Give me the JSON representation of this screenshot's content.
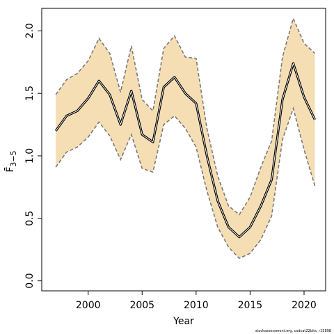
{
  "chart_data": {
    "type": "line",
    "xlabel": "Year",
    "ylabel": "F̄",
    "ylabel_subscript": "3−5",
    "xlim": [
      1995.7,
      2022.0
    ],
    "ylim": [
      -0.08,
      2.18
    ],
    "x_ticks": [
      2000,
      2005,
      2010,
      2015,
      2020
    ],
    "x_tick_labels": [
      "2000",
      "2005",
      "2010",
      "2015",
      "2020"
    ],
    "y_ticks": [
      0.0,
      0.5,
      1.0,
      1.5,
      2.0
    ],
    "y_tick_labels": [
      "0.0",
      "0.5",
      "1.0",
      "1.5",
      "2.0"
    ],
    "grid": false,
    "colors": {
      "band": "#f5deb3",
      "band_edge": "#7a7a7a",
      "line": "#000000"
    },
    "x": [
      1997,
      1998,
      1999,
      2000,
      2001,
      2002,
      2003,
      2004,
      2005,
      2006,
      2007,
      2008,
      2009,
      2010,
      2011,
      2012,
      2013,
      2014,
      2015,
      2016,
      2017,
      2018,
      2019,
      2020,
      2021
    ],
    "series": [
      {
        "role": "estimate",
        "values": [
          1.2,
          1.32,
          1.36,
          1.46,
          1.6,
          1.49,
          1.25,
          1.52,
          1.17,
          1.11,
          1.55,
          1.63,
          1.5,
          1.42,
          1.0,
          0.64,
          0.43,
          0.35,
          0.43,
          0.6,
          0.81,
          1.45,
          1.74,
          1.47,
          1.29
        ]
      },
      {
        "role": "upper",
        "values": [
          1.49,
          1.61,
          1.66,
          1.76,
          1.94,
          1.82,
          1.51,
          1.88,
          1.45,
          1.36,
          1.86,
          1.96,
          1.79,
          1.78,
          1.22,
          0.84,
          0.6,
          0.53,
          0.67,
          0.91,
          1.12,
          1.79,
          2.1,
          1.9,
          1.82
        ]
      },
      {
        "role": "lower",
        "values": [
          0.91,
          1.03,
          1.07,
          1.15,
          1.27,
          1.16,
          0.97,
          1.17,
          0.9,
          0.87,
          1.25,
          1.32,
          1.22,
          1.07,
          0.72,
          0.43,
          0.27,
          0.18,
          0.22,
          0.33,
          0.52,
          1.13,
          1.38,
          1.05,
          0.76
        ]
      }
    ]
  },
  "credit": "stockassessment.org, codcat22bits, r15898"
}
